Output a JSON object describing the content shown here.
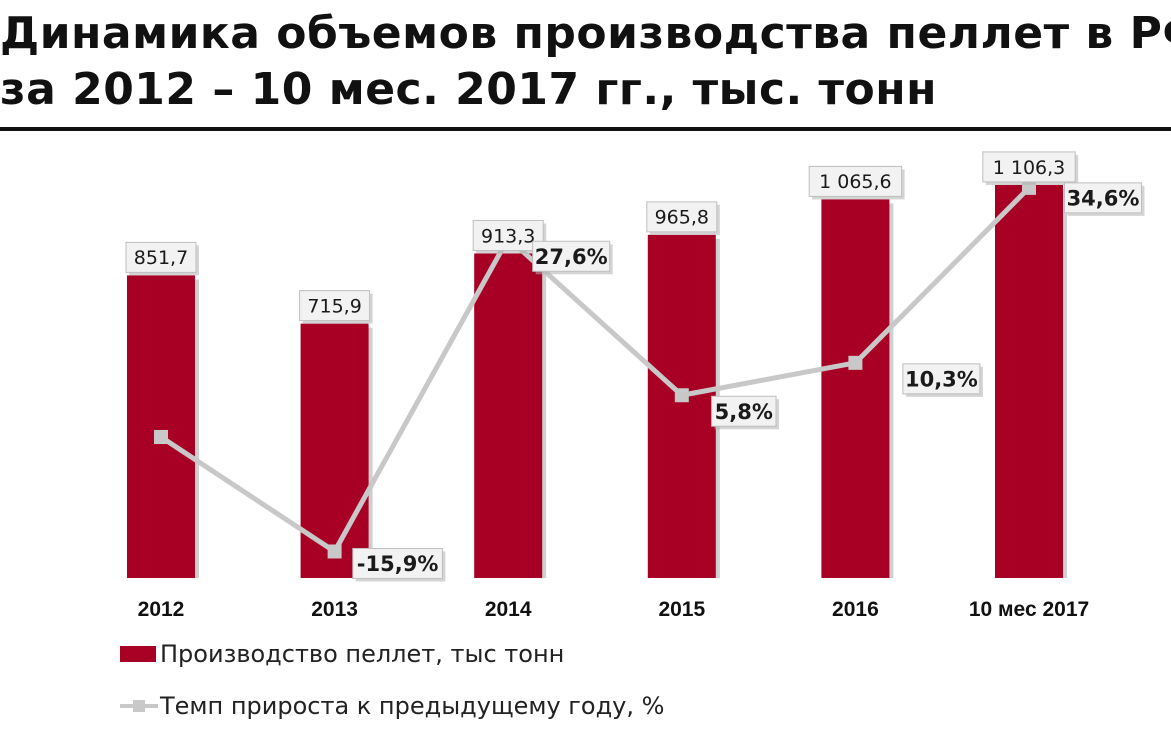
{
  "title_lines": [
    "Динамика объемов производства пеллет в РФ",
    "за 2012 – 10 мес. 2017 гг., тыс. тонн"
  ],
  "colors": {
    "bar": "#a80024",
    "line": "#c8c8c8",
    "label_bg": "#f2f2f2",
    "label_border": "#bfbfbf"
  },
  "chart_data": {
    "type": "bar",
    "categories": [
      "2012",
      "2013",
      "2014",
      "2015",
      "2016",
      "10 мес 2017"
    ],
    "series": [
      {
        "name": "Производство пеллет, тыс тонн",
        "type": "bar",
        "values": [
          851.7,
          715.9,
          913.3,
          965.8,
          1065.6,
          1106.3
        ],
        "labels": [
          "851,7",
          "715,9",
          "913,3",
          "965,8",
          "1 065,6",
          "1 106,3"
        ]
      },
      {
        "name": "Темп прироста к предыдущему году, %",
        "type": "line",
        "axis": "secondary",
        "values": [
          null,
          -15.9,
          27.6,
          5.8,
          10.3,
          34.6
        ],
        "labels": [
          "",
          "-15,9%",
          "27,6%",
          "5,8%",
          "10,3%",
          "34,6%"
        ]
      }
    ],
    "ylim": [
      0,
      1200
    ],
    "legend_position": "bottom-left",
    "grid": false
  }
}
